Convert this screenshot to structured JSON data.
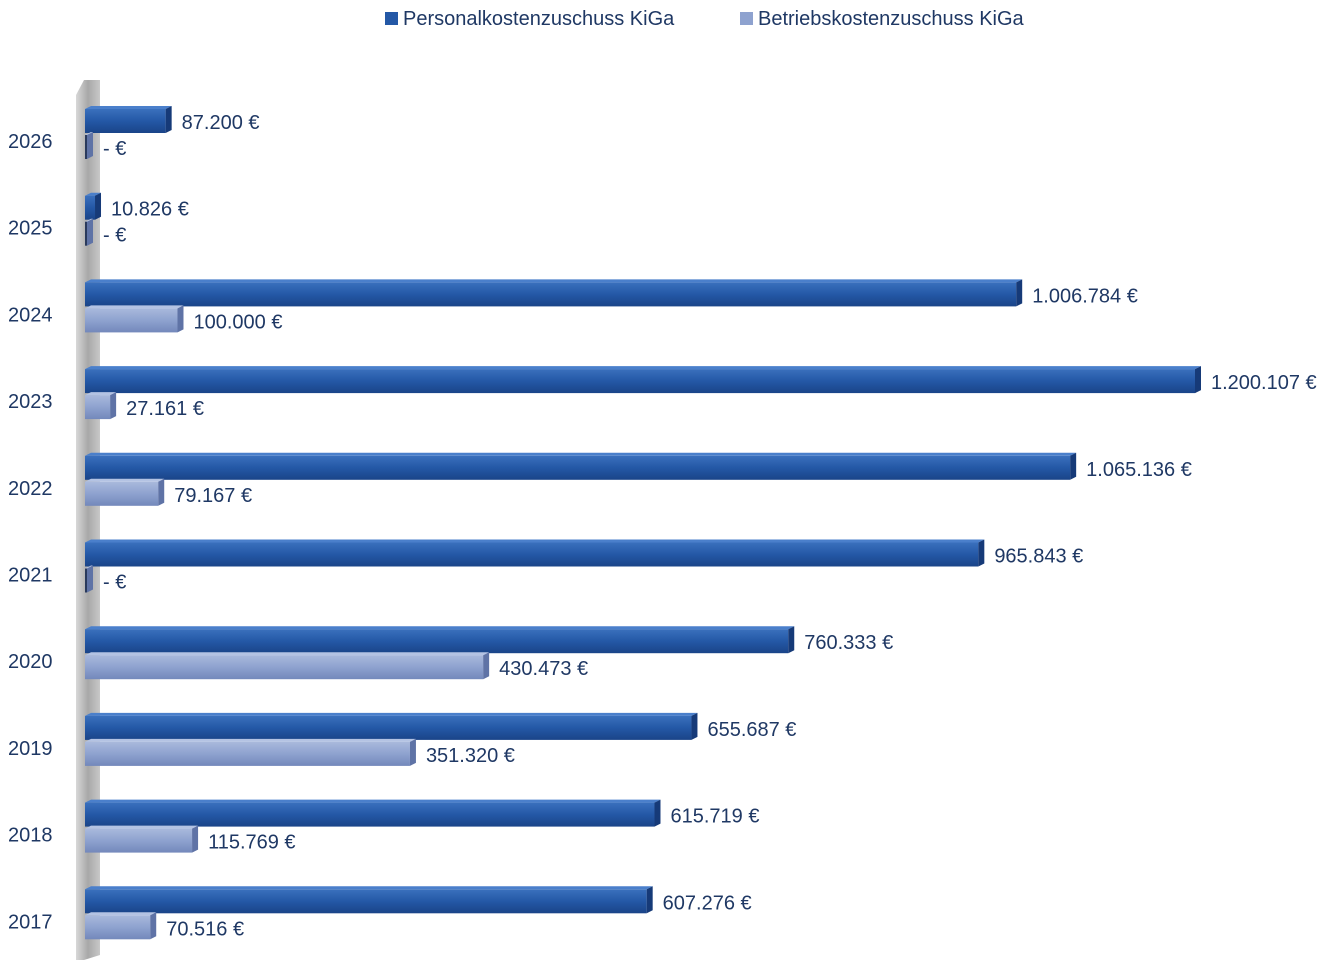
{
  "chart_data": {
    "type": "bar",
    "orientation": "horizontal",
    "bar_style": "3d",
    "legend_position": "top",
    "grid": false,
    "categories": [
      "2026",
      "2025",
      "2024",
      "2023",
      "2022",
      "2021",
      "2020",
      "2019",
      "2018",
      "2017"
    ],
    "series": [
      {
        "name": "Personalkostenzuschuss KiGa",
        "color": "#2458a6",
        "values": [
          87200,
          10826,
          1006784,
          1200107,
          1065136,
          965843,
          760333,
          655687,
          615719,
          607276
        ],
        "labels": [
          "87.200 €",
          "10.826 €",
          "1.006.784 €",
          "1.200.107 €",
          "1.065.136 €",
          "965.843 €",
          "760.333 €",
          "655.687 €",
          "615.719 €",
          "607.276 €"
        ]
      },
      {
        "name": "Betriebskostenzuschuss KiGa",
        "color": "#8ea2cf",
        "values": [
          0,
          0,
          100000,
          27161,
          79167,
          0,
          430473,
          351320,
          115769,
          70516
        ],
        "labels": [
          "-   €",
          "-   €",
          "100.000 €",
          "27.161 €",
          "79.167 €",
          "-   €",
          "430.473 €",
          "351.320 €",
          "115.769 €",
          "70.516 €"
        ]
      }
    ],
    "xlim": [
      0,
      1200107
    ],
    "title": "",
    "xlabel": "",
    "ylabel": ""
  }
}
